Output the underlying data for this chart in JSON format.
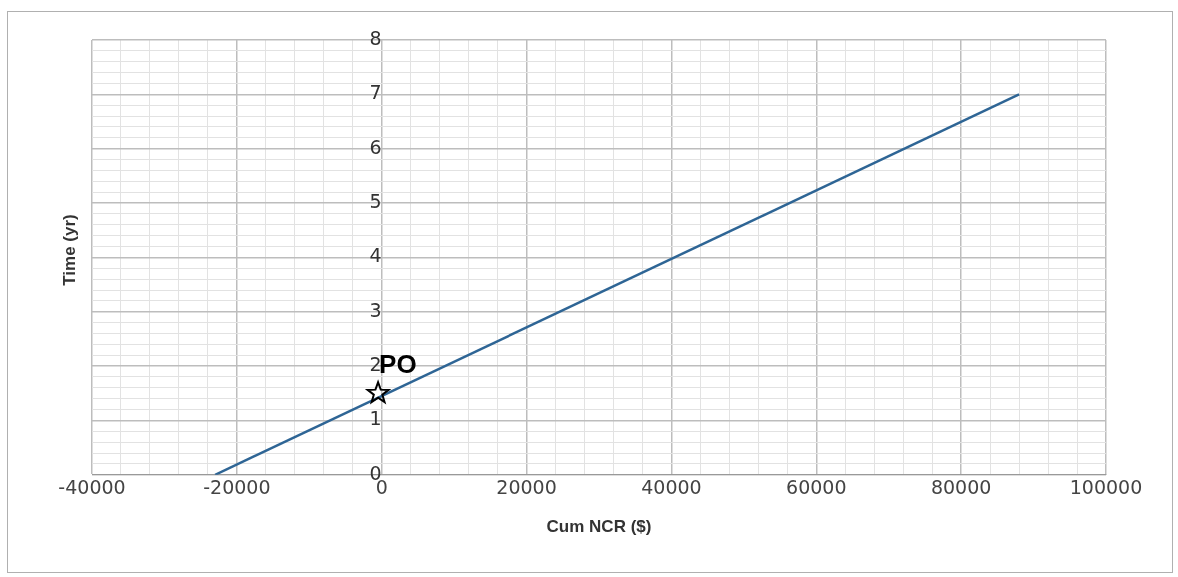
{
  "chart_data": {
    "type": "line",
    "xlabel": "Cum NCR ($)",
    "ylabel": "Time (yr)",
    "xlim": [
      -40000,
      100000
    ],
    "ylim": [
      0,
      8
    ],
    "xticks": [
      -40000,
      {
        "value": -36000,
        "label": null
      },
      {
        "value": -32000,
        "label": null
      },
      {
        "value": -28000,
        "label": null
      },
      {
        "value": -24000,
        "label": null
      },
      -20000,
      {
        "value": -16000,
        "label": null
      },
      {
        "value": -12000,
        "label": null
      },
      {
        "value": -8000,
        "label": null
      },
      {
        "value": -4000,
        "label": null
      },
      0,
      {
        "value": 4000,
        "label": null
      },
      {
        "value": 8000,
        "label": null
      },
      {
        "value": 12000,
        "label": null
      },
      {
        "value": 16000,
        "label": null
      },
      20000,
      {
        "value": 24000,
        "label": null
      },
      {
        "value": 28000,
        "label": null
      },
      {
        "value": 32000,
        "label": null
      },
      {
        "value": 36000,
        "label": null
      },
      40000,
      {
        "value": 44000,
        "label": null
      },
      {
        "value": 48000,
        "label": null
      },
      {
        "value": 52000,
        "label": null
      },
      {
        "value": 56000,
        "label": null
      },
      60000,
      {
        "value": 64000,
        "label": null
      },
      {
        "value": 68000,
        "label": null
      },
      {
        "value": 72000,
        "label": null
      },
      {
        "value": 76000,
        "label": null
      },
      80000,
      {
        "value": 84000,
        "label": null
      },
      {
        "value": 88000,
        "label": null
      },
      {
        "value": 92000,
        "label": null
      },
      {
        "value": 96000,
        "label": null
      },
      100000
    ],
    "yticks": [
      0,
      {
        "value": 0.2,
        "label": null
      },
      {
        "value": 0.4,
        "label": null
      },
      {
        "value": 0.6,
        "label": null
      },
      {
        "value": 0.8,
        "label": null
      },
      1,
      {
        "value": 1.2,
        "label": null
      },
      {
        "value": 1.4,
        "label": null
      },
      {
        "value": 1.6,
        "label": null
      },
      {
        "value": 1.8,
        "label": null
      },
      2,
      {
        "value": 2.2,
        "label": null
      },
      {
        "value": 2.4,
        "label": null
      },
      {
        "value": 2.6,
        "label": null
      },
      {
        "value": 2.8,
        "label": null
      },
      3,
      {
        "value": 3.2,
        "label": null
      },
      {
        "value": 3.4,
        "label": null
      },
      {
        "value": 3.6,
        "label": null
      },
      {
        "value": 3.8,
        "label": null
      },
      4,
      {
        "value": 4.2,
        "label": null
      },
      {
        "value": 4.4,
        "label": null
      },
      {
        "value": 4.6,
        "label": null
      },
      {
        "value": 4.8,
        "label": null
      },
      5,
      {
        "value": 5.2,
        "label": null
      },
      {
        "value": 5.4,
        "label": null
      },
      {
        "value": 5.6,
        "label": null
      },
      {
        "value": 5.8,
        "label": null
      },
      6,
      {
        "value": 6.2,
        "label": null
      },
      {
        "value": 6.4,
        "label": null
      },
      {
        "value": 6.6,
        "label": null
      },
      {
        "value": 6.8,
        "label": null
      },
      7,
      {
        "value": 7.2,
        "label": null
      },
      {
        "value": 7.4,
        "label": null
      },
      {
        "value": 7.6,
        "label": null
      },
      {
        "value": 7.8,
        "label": null
      },
      8
    ],
    "grid": true,
    "legend": false,
    "series": [
      {
        "color": "#2e6595",
        "x": [
          -23000,
          88000
        ],
        "values": [
          0,
          7
        ],
        "marker": "none"
      },
      {
        "type": "scatter",
        "name": "PO",
        "color": "#000000",
        "x": [
          -500
        ],
        "values": [
          1.5
        ],
        "marker": "star"
      }
    ]
  }
}
